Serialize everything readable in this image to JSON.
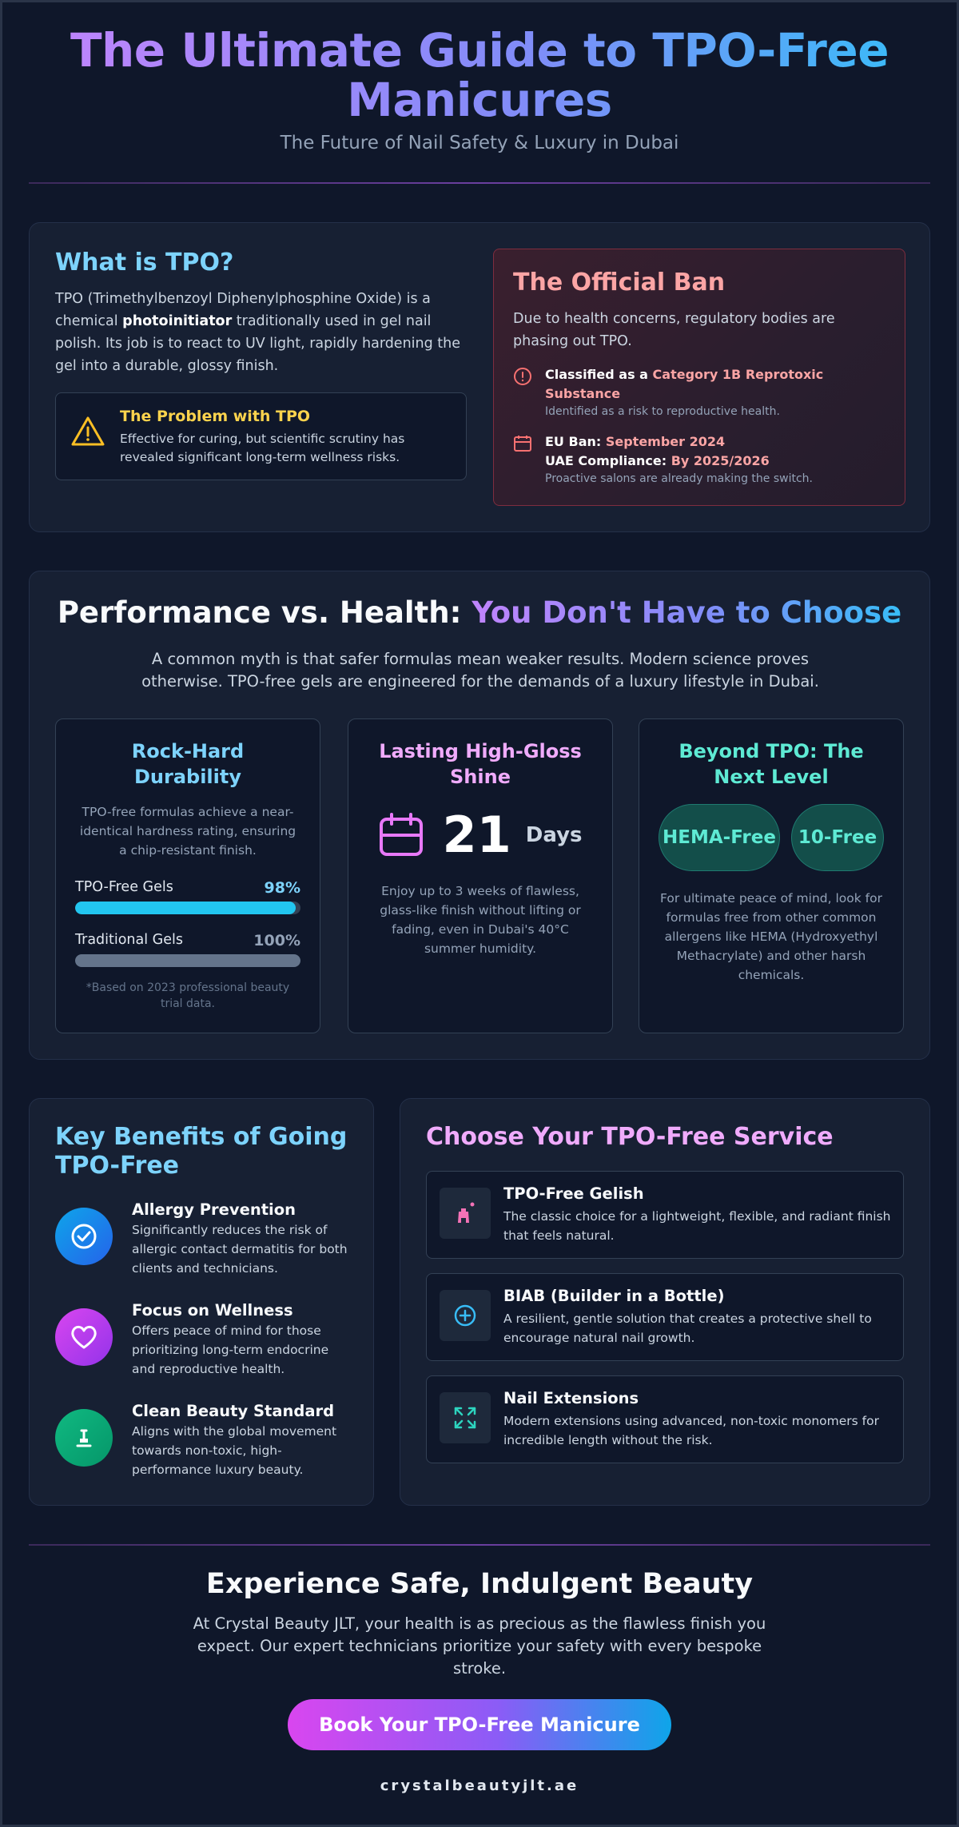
{
  "header": {
    "title": "The Ultimate Guide to TPO-Free Manicures",
    "subtitle": "The Future of Nail Safety & Luxury in Dubai"
  },
  "what_is": {
    "title": "What is TPO?",
    "text_before": "TPO (Trimethylbenzoyl Diphenylphosphine Oxide) is a chemical ",
    "text_bold": "photoinitiator",
    "text_after": " traditionally used in gel nail polish. Its job is to react to UV light, rapidly hardening the gel into a durable, glossy finish.",
    "problem_title": "The Problem with TPO",
    "problem_text": "Effective for curing, but scientific scrutiny has revealed significant long-term wellness risks."
  },
  "ban": {
    "title": "The Official Ban",
    "text": "Due to health concerns, regulatory bodies are phasing out TPO.",
    "item1_label": "Classified as a ",
    "item1_value": "Category 1B Reprotoxic Substance",
    "item1_note": "Identified as a risk to reproductive health.",
    "item2_eu_label": "EU Ban: ",
    "item2_eu_value": "September 2024",
    "item2_uae_label": "UAE Compliance: ",
    "item2_uae_value": "By 2025/2026",
    "item2_note": "Proactive salons are already making the switch."
  },
  "performance": {
    "title_plain": "Performance vs. Health: ",
    "title_highlight": "You Don't Have to Choose",
    "text": "A common myth is that safer formulas mean weaker results. Modern science proves otherwise. TPO-free gels are engineered for the demands of a luxury lifestyle in Dubai.",
    "durability": {
      "title": "Rock-Hard Durability",
      "text": "TPO-free formulas achieve a near-identical hardness rating, ensuring a chip-resistant finish.",
      "bars": [
        {
          "label": "TPO-Free Gels",
          "pct_label": "98%",
          "value": 98,
          "color": "#22c6f0",
          "label_color": "#7dd3fc"
        },
        {
          "label": "Traditional Gels",
          "pct_label": "100%",
          "value": 100,
          "color": "#64748b",
          "label_color": "#94a3b8"
        }
      ],
      "footnote": "*Based on 2023 professional beauty trial data."
    },
    "shine": {
      "title": "Lasting High-Gloss Shine",
      "days_value": "21",
      "days_label": "Days",
      "text": "Enjoy up to 3 weeks of flawless, glass-like finish without lifting or fading, even in Dubai's 40°C summer humidity."
    },
    "beyond": {
      "title": "Beyond TPO: The Next Level",
      "pill1": "HEMA-Free",
      "pill2": "10-Free",
      "text": "For ultimate peace of mind, look for formulas free from other common allergens like HEMA (Hydroxyethyl Methacrylate) and other harsh chemicals."
    }
  },
  "benefits": {
    "title": "Key Benefits of Going TPO-Free",
    "items": [
      {
        "title": "Allergy Prevention",
        "text": "Significantly reduces the risk of allergic contact dermatitis for both clients and technicians.",
        "icon": "check-circle-icon"
      },
      {
        "title": "Focus on Wellness",
        "text": "Offers peace of mind for those prioritizing long-term endocrine and reproductive health.",
        "icon": "heart-icon"
      },
      {
        "title": "Clean Beauty Standard",
        "text": "Aligns with the global movement towards non-toxic, high-performance luxury beauty.",
        "icon": "brush-icon"
      }
    ]
  },
  "services": {
    "title": "Choose Your TPO-Free Service",
    "items": [
      {
        "title": "TPO-Free Gelish",
        "text": "The classic choice for a lightweight, flexible, and radiant finish that feels natural.",
        "icon": "polish-bottle-icon"
      },
      {
        "title": "BIAB (Builder in a Bottle)",
        "text": "A resilient, gentle solution that creates a protective shell to encourage natural nail growth.",
        "icon": "plus-circle-icon"
      },
      {
        "title": "Nail Extensions",
        "text": "Modern extensions using advanced, non-toxic monomers for incredible length without the risk.",
        "icon": "expand-icon"
      }
    ]
  },
  "footer": {
    "title": "Experience Safe, Indulgent Beauty",
    "text": "At Crystal Beauty JLT, your health is as precious as the flawless finish you expect. Our expert technicians prioritize your safety with every bespoke stroke.",
    "cta": "Book Your TPO-Free Manicure",
    "website": "crystalbeautyjlt.ae"
  }
}
